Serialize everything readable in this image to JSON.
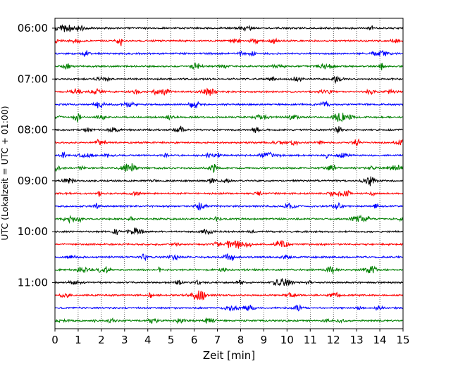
{
  "chart_data": {
    "type": "line",
    "subtype": "helicorder (seismogram drum plot)",
    "xlabel": "Zeit  [min]",
    "ylabel": "UTC (Lokalzeit = UTC + 01:00)",
    "xlim": [
      0,
      15
    ],
    "x_ticks": [
      "0",
      "1",
      "2",
      "3",
      "4",
      "5",
      "6",
      "7",
      "8",
      "9",
      "10",
      "11",
      "12",
      "13",
      "14",
      "15"
    ],
    "y_tick_labels": [
      "06:00",
      "07:00",
      "08:00",
      "09:00",
      "10:00",
      "11:00"
    ],
    "trace_minutes": 15,
    "trace_count": 24,
    "start_time_utc": "06:00",
    "end_time_utc": "12:00",
    "trace_colors": [
      "#000000",
      "#ff0000",
      "#0000ff",
      "#008000"
    ],
    "vertical_grid": "dotted at each minute",
    "background": "#ffffff"
  }
}
